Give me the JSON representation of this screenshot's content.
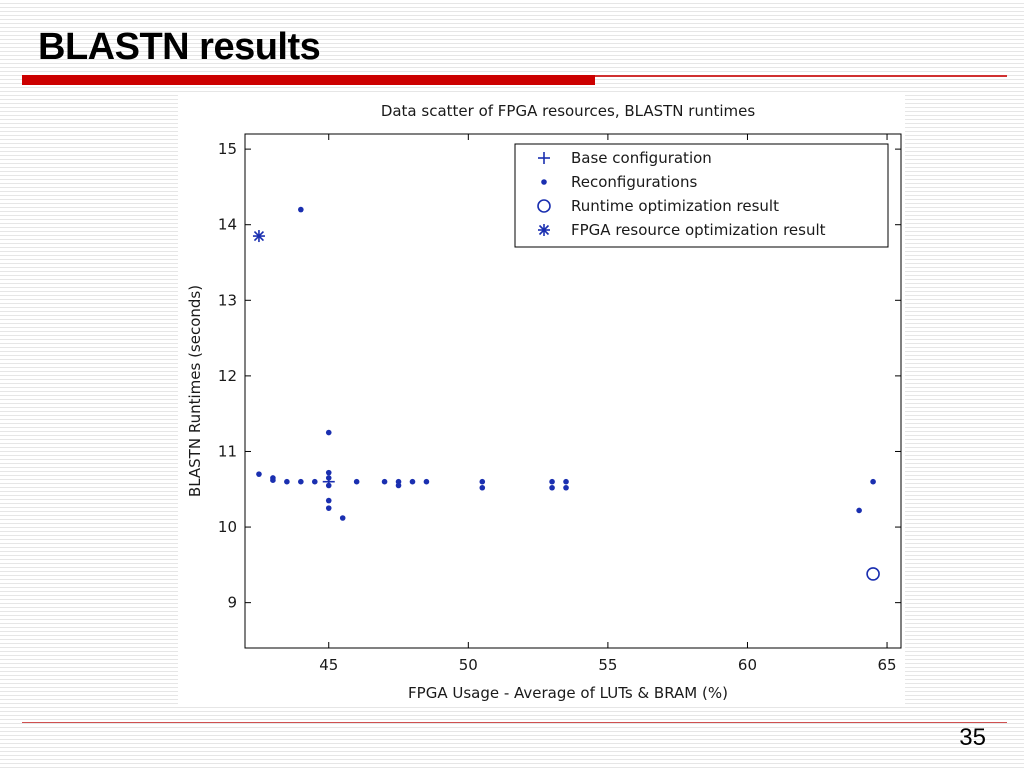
{
  "slide": {
    "title": "BLASTN results",
    "page_number": "35",
    "colors": {
      "accent_red": "#cc0000",
      "marker_blue": "#1a2fb0"
    }
  },
  "chart_data": {
    "type": "scatter",
    "title": "Data scatter of FPGA resources, BLASTN runtimes",
    "xlabel": "FPGA Usage - Average of LUTs & BRAM (%)",
    "ylabel": "BLASTN Runtimes (seconds)",
    "xlim": [
      42,
      65.5
    ],
    "ylim": [
      8.4,
      15.2
    ],
    "xticks": [
      45,
      50,
      55,
      60,
      65
    ],
    "yticks": [
      9,
      10,
      11,
      12,
      13,
      14,
      15
    ],
    "grid": false,
    "legend_position": "top-right",
    "series": [
      {
        "name": "Base configuration",
        "marker": "plus",
        "points": [
          [
            45,
            10.6
          ]
        ]
      },
      {
        "name": "Reconfigurations",
        "marker": "dot",
        "points": [
          [
            42.5,
            10.7
          ],
          [
            43.0,
            10.65
          ],
          [
            43.0,
            10.62
          ],
          [
            43.5,
            10.6
          ],
          [
            44.0,
            10.6
          ],
          [
            44.0,
            14.2
          ],
          [
            44.5,
            10.6
          ],
          [
            45.0,
            11.25
          ],
          [
            45.0,
            10.72
          ],
          [
            45.0,
            10.65
          ],
          [
            45.0,
            10.55
          ],
          [
            45.0,
            10.35
          ],
          [
            45.0,
            10.25
          ],
          [
            45.5,
            10.12
          ],
          [
            46.0,
            10.6
          ],
          [
            47.0,
            10.6
          ],
          [
            47.5,
            10.6
          ],
          [
            47.5,
            10.55
          ],
          [
            48.0,
            10.6
          ],
          [
            48.5,
            10.6
          ],
          [
            50.5,
            10.6
          ],
          [
            50.5,
            10.52
          ],
          [
            53.0,
            10.6
          ],
          [
            53.0,
            10.52
          ],
          [
            53.5,
            10.6
          ],
          [
            53.5,
            10.52
          ],
          [
            64.0,
            10.22
          ],
          [
            64.5,
            10.6
          ]
        ]
      },
      {
        "name": "Runtime optimization result",
        "marker": "circle",
        "points": [
          [
            64.5,
            9.38
          ]
        ]
      },
      {
        "name": "FPGA resource optimization result",
        "marker": "star",
        "points": [
          [
            42.5,
            13.85
          ]
        ]
      }
    ]
  }
}
